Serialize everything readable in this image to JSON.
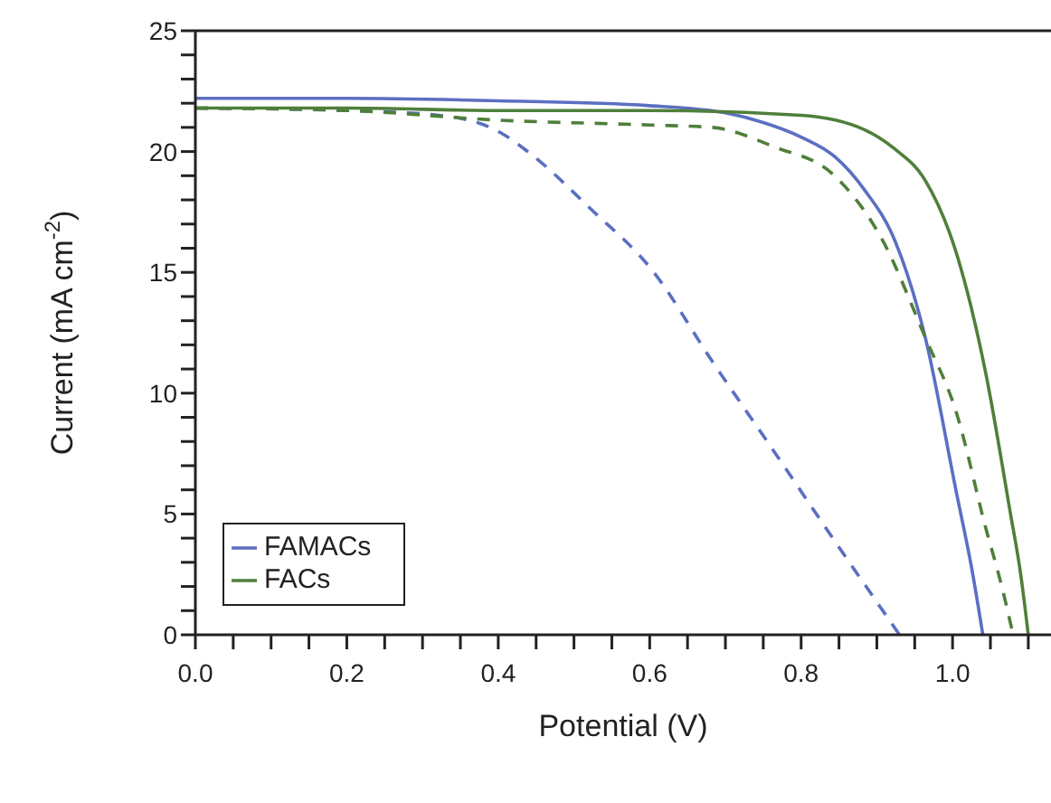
{
  "chart_data": {
    "type": "line",
    "xlabel": "Potential (V)",
    "ylabel": "Current (mA cm$^{-2}$)",
    "xlim": [
      0,
      1.13
    ],
    "ylim": [
      0,
      25
    ],
    "xticks": [
      {
        "value": 0,
        "label": "0.0"
      },
      {
        "value": 0.05,
        "label": null
      },
      {
        "value": 0.1,
        "label": null
      },
      {
        "value": 0.15,
        "label": null
      },
      {
        "value": 0.2,
        "label": "0.2"
      },
      {
        "value": 0.25,
        "label": null
      },
      {
        "value": 0.3,
        "label": null
      },
      {
        "value": 0.35,
        "label": null
      },
      {
        "value": 0.4,
        "label": "0.4"
      },
      {
        "value": 0.45,
        "label": null
      },
      {
        "value": 0.5,
        "label": null
      },
      {
        "value": 0.55,
        "label": null
      },
      {
        "value": 0.6,
        "label": "0.6"
      },
      {
        "value": 0.65,
        "label": null
      },
      {
        "value": 0.7,
        "label": null
      },
      {
        "value": 0.75,
        "label": null
      },
      {
        "value": 0.8,
        "label": "0.8"
      },
      {
        "value": 0.85,
        "label": null
      },
      {
        "value": 0.9,
        "label": null
      },
      {
        "value": 0.95,
        "label": null
      },
      {
        "value": 1.0,
        "label": "1.0"
      },
      {
        "value": 1.05,
        "label": null
      },
      {
        "value": 1.1,
        "label": null
      }
    ],
    "yticks": [
      0,
      {
        "value": 1,
        "label": null
      },
      {
        "value": 2,
        "label": null
      },
      {
        "value": 3,
        "label": null
      },
      {
        "value": 4,
        "label": null
      },
      5,
      {
        "value": 6,
        "label": null
      },
      {
        "value": 7,
        "label": null
      },
      {
        "value": 8,
        "label": null
      },
      {
        "value": 9,
        "label": null
      },
      10,
      {
        "value": 11,
        "label": null
      },
      {
        "value": 12,
        "label": null
      },
      {
        "value": 13,
        "label": null
      },
      {
        "value": 14,
        "label": null
      },
      15,
      {
        "value": 16,
        "label": null
      },
      {
        "value": 17,
        "label": null
      },
      {
        "value": 18,
        "label": null
      },
      {
        "value": 19,
        "label": null
      },
      20,
      {
        "value": 21,
        "label": null
      },
      {
        "value": 22,
        "label": null
      },
      {
        "value": 23,
        "label": null
      },
      {
        "value": 24,
        "label": null
      },
      25
    ],
    "grid": false,
    "legend": "bottom left",
    "marker": "none",
    "series": [
      {
        "name": "FAMACs",
        "color": "#5b6fc2",
        "line_style": "solid",
        "x": [
          0,
          0.2,
          0.4,
          0.6,
          0.7,
          0.75,
          0.8,
          0.844,
          0.884,
          0.924,
          0.964,
          1.005,
          1.025,
          1.04
        ],
        "values": [
          22.2,
          22.2,
          22.1,
          21.9,
          21.6,
          21.2,
          20.6,
          19.8,
          18.4,
          16.3,
          12.3,
          5.9,
          2.8,
          0
        ]
      },
      {
        "color": "#5b6fc2",
        "line_style": "dashed",
        "x": [
          0,
          0.2,
          0.322,
          0.402,
          0.443,
          0.523,
          0.603,
          0.683,
          0.764,
          0.844,
          0.93
        ],
        "values": [
          21.8,
          21.7,
          21.5,
          20.8,
          19.9,
          17.6,
          15.1,
          11.3,
          7.6,
          3.9,
          0
        ]
      },
      {
        "name": "FACs",
        "color": "#4f7f3a",
        "line_style": "solid",
        "x": [
          0,
          0.2,
          0.4,
          0.6,
          0.8,
          0.884,
          0.924,
          0.964,
          1.005,
          1.044,
          1.076,
          1.09,
          1.1
        ],
        "values": [
          21.8,
          21.8,
          21.7,
          21.7,
          21.5,
          20.9,
          20.1,
          18.8,
          15.8,
          10.8,
          5.1,
          2.5,
          0
        ]
      },
      {
        "color": "#4f7f3a",
        "line_style": "dashed",
        "x": [
          0,
          0.2,
          0.4,
          0.6,
          0.683,
          0.764,
          0.844,
          0.908,
          0.964,
          1.005,
          1.044,
          1.065,
          1.08
        ],
        "values": [
          21.8,
          21.7,
          21.3,
          21.1,
          21.0,
          20.2,
          19.0,
          16.3,
          12.3,
          9.2,
          4.4,
          2.0,
          0
        ]
      }
    ]
  }
}
